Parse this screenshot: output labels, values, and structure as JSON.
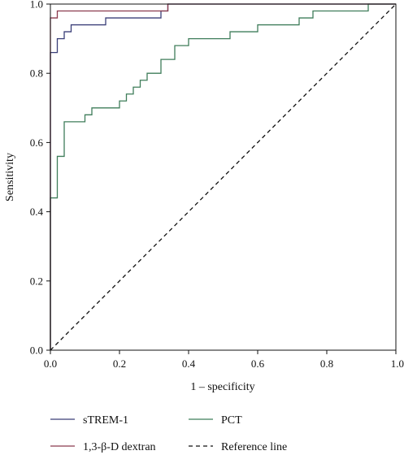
{
  "chart_data": {
    "type": "line",
    "title": "",
    "xlabel": "1 – specificity",
    "ylabel": "Sensitivity",
    "xlim": [
      0,
      1
    ],
    "ylim": [
      0,
      1
    ],
    "x_ticks": [
      "0.0",
      "0.2",
      "0.4",
      "0.6",
      "0.8",
      "1.0"
    ],
    "y_ticks": [
      "0.0",
      "0.2",
      "0.4",
      "0.6",
      "0.8",
      "1.0"
    ],
    "grid": false,
    "legend_position": "bottom",
    "series": [
      {
        "name": "sTREM-1",
        "color": "#3a3f78",
        "style": "solid",
        "x": [
          0,
          0,
          0.02,
          0.02,
          0.04,
          0.04,
          0.06,
          0.06,
          0.16,
          0.16,
          0.32,
          0.32,
          0.34,
          0.34,
          1.0
        ],
        "y": [
          0,
          0.86,
          0.86,
          0.9,
          0.9,
          0.92,
          0.92,
          0.94,
          0.94,
          0.96,
          0.96,
          0.98,
          0.98,
          1.0,
          1.0
        ]
      },
      {
        "name": "PCT",
        "color": "#3f7d5a",
        "style": "solid",
        "x": [
          0,
          0,
          0.02,
          0.02,
          0.04,
          0.04,
          0.1,
          0.1,
          0.12,
          0.12,
          0.2,
          0.2,
          0.22,
          0.22,
          0.24,
          0.24,
          0.26,
          0.26,
          0.28,
          0.28,
          0.32,
          0.32,
          0.36,
          0.36,
          0.4,
          0.4,
          0.52,
          0.52,
          0.6,
          0.6,
          0.72,
          0.72,
          0.76,
          0.76,
          0.92,
          0.92,
          1.0
        ],
        "y": [
          0,
          0.44,
          0.44,
          0.56,
          0.56,
          0.66,
          0.66,
          0.68,
          0.68,
          0.7,
          0.7,
          0.72,
          0.72,
          0.74,
          0.74,
          0.76,
          0.76,
          0.78,
          0.78,
          0.8,
          0.8,
          0.84,
          0.84,
          0.88,
          0.88,
          0.9,
          0.9,
          0.92,
          0.92,
          0.94,
          0.94,
          0.96,
          0.96,
          0.98,
          0.98,
          1.0,
          1.0
        ]
      },
      {
        "name": "1,3-β-D dextran",
        "color": "#8b3a4e",
        "style": "solid",
        "x": [
          0,
          0,
          0.02,
          0.02,
          0.34,
          0.34,
          1.0
        ],
        "y": [
          0,
          0.96,
          0.96,
          0.98,
          0.98,
          1.0,
          1.0
        ]
      },
      {
        "name": "Reference line",
        "color": "#111111",
        "style": "dashed",
        "x": [
          0,
          1
        ],
        "y": [
          0,
          1
        ]
      }
    ]
  }
}
